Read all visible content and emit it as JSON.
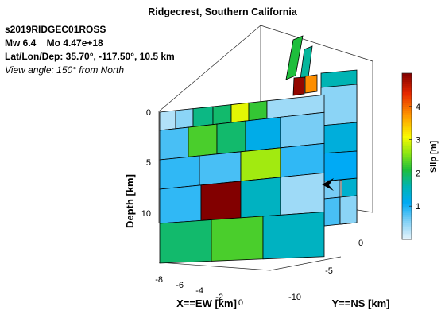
{
  "chart_data": {
    "type": "heatmap",
    "title": "Ridgecrest, Southern California",
    "event_id": "s2019RIDGEC01ROSS",
    "magnitude_line": "Mw 6.4    Mo 4.47e+18",
    "location_line": "Lat/Lon/Dep: 35.70°, -117.50°, 10.5 km",
    "view_line": "View angle: 150° from North",
    "xlabel": "X==EW [km]",
    "ylabel": "Y==NS [km]",
    "zlabel": "Depth [km]",
    "x_ticks": [
      "-8",
      "-6",
      "-4",
      "-2",
      "0"
    ],
    "y_ticks": [
      "0",
      "-5",
      "-10"
    ],
    "z_ticks": [
      "0",
      "5",
      "10"
    ],
    "colorbar_label": "Slip [m]",
    "colorbar_ticks": [
      "1",
      "2",
      "3",
      "4"
    ],
    "clim": [
      0,
      5
    ],
    "front_fault_slip_m": [
      [
        0.3,
        0.5,
        1.8,
        1.9,
        3.0,
        2.2,
        0.4
      ],
      [
        0.8,
        2.3,
        1.9,
        1.2,
        0.6
      ],
      [
        0.9,
        0.8,
        2.7,
        0.9
      ],
      [
        0.9,
        5.0,
        1.5,
        0.4
      ],
      [
        1.9,
        2.3,
        1.5
      ]
    ],
    "back_fault_slip_m": [
      [
        2.1,
        1.7,
        4.9,
        3.8
      ],
      [
        1.6,
        0.7,
        0.8
      ],
      [
        0.7,
        0.6,
        3.5
      ],
      [
        0.8,
        0.6,
        1.4
      ],
      [
        0.5,
        1.3
      ],
      [
        1.1,
        0.5
      ]
    ]
  }
}
